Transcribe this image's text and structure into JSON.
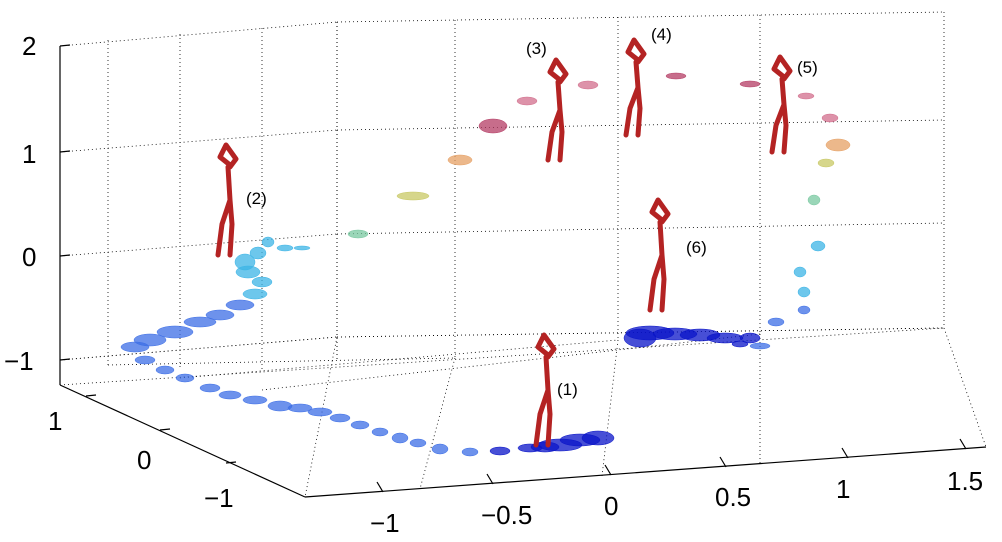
{
  "chart_data": {
    "type": "scatter",
    "title": "",
    "xlabel": "",
    "ylabel": "",
    "zlabel": "",
    "grid": true,
    "x_ticks": [
      "−1",
      "−0.5",
      "0",
      "0.5",
      "1",
      "1.5"
    ],
    "y_ticks": [
      "1",
      "0",
      "−1"
    ],
    "z_ticks": [
      "2",
      "1",
      "0",
      "−1"
    ],
    "xlim": [
      -1.2,
      1.7
    ],
    "ylim": [
      -1.5,
      1.3
    ],
    "zlim": [
      -1,
      2
    ],
    "colormap": [
      "#0a14c8",
      "#3c6ee6",
      "#3cb4e6",
      "#78c8a0",
      "#c8c864",
      "#e6a064",
      "#d26e8c",
      "#b43c64"
    ],
    "figure_color": "#b42323",
    "annotations": [
      "(1)",
      "(2)",
      "(3)",
      "(4)",
      "(5)",
      "(6)"
    ]
  }
}
